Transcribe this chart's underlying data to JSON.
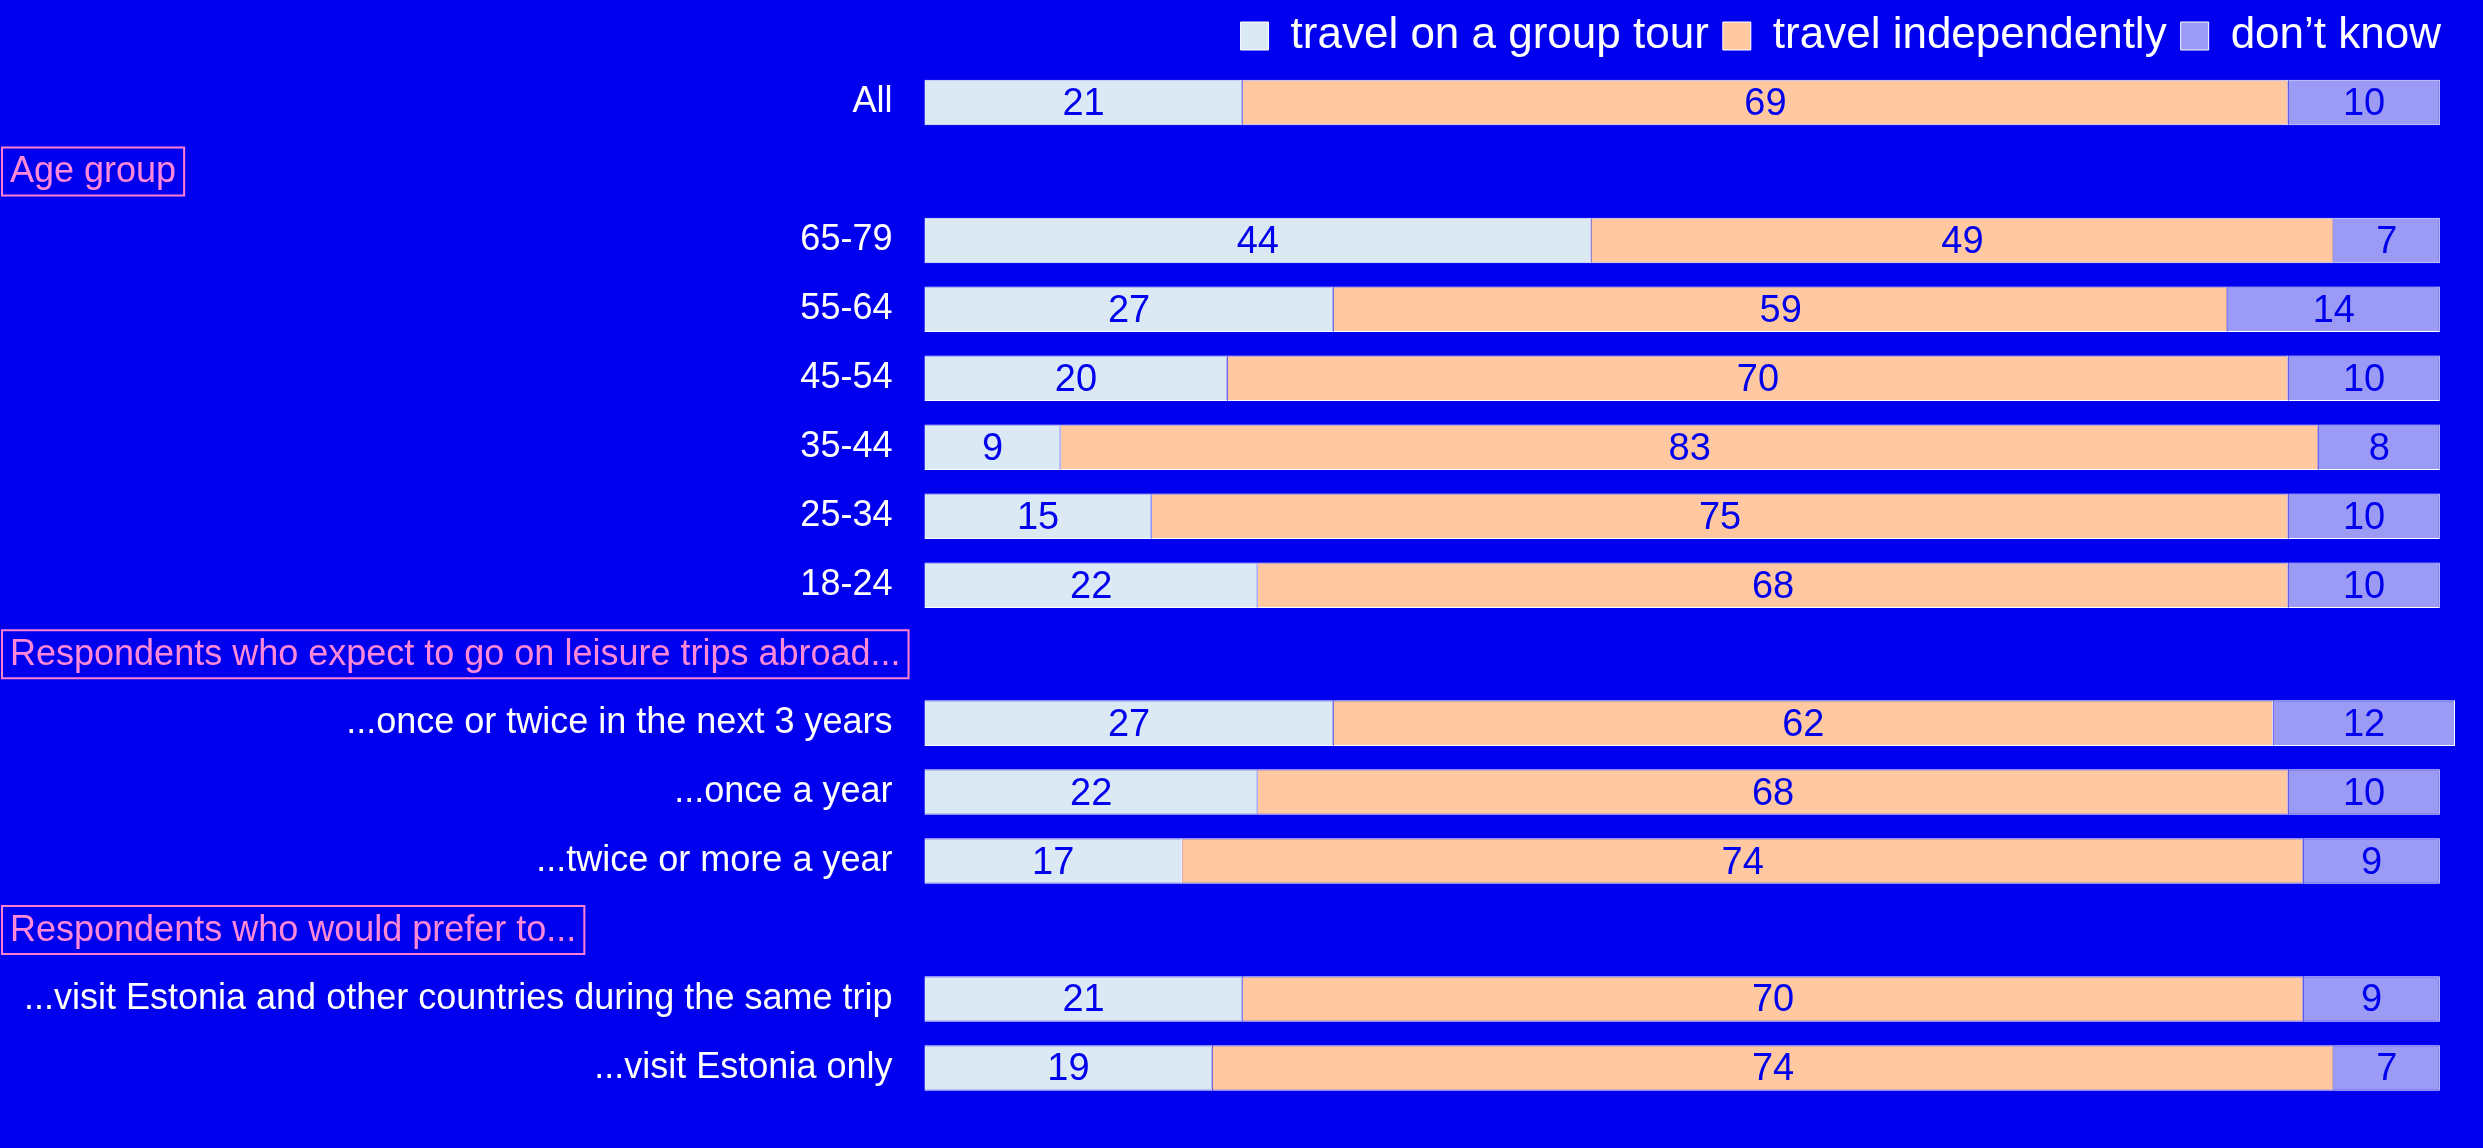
{
  "chart_data": {
    "type": "bar",
    "orientation": "horizontal",
    "stacked": true,
    "data_labels": true,
    "legend": "top right",
    "tick_labels": "y",
    "xlim": [
      0,
      101
    ],
    "categories": [
      "All",
      null,
      "65-79",
      "55-64",
      "45-54",
      "35-44",
      "25-34",
      "18-24",
      null,
      "...once or twice in the next 3 years",
      "...once a year",
      "...twice or more a year",
      null,
      "...visit Estonia and other countries during the same trip",
      "...visit Estonia only"
    ],
    "annotations": [
      "Age group",
      "Respondents who expect to go on leisure trips abroad...",
      "Respondents who would prefer to..."
    ],
    "series": [
      {
        "name": "travel on a group tour",
        "color": "#dbe9f5",
        "values": [
          21,
          null,
          44,
          27,
          20,
          9,
          15,
          22,
          null,
          27,
          22,
          17,
          null,
          21,
          19
        ]
      },
      {
        "name": "travel independently",
        "color": "#ffc8a0",
        "values": [
          69,
          null,
          49,
          59,
          70,
          83,
          75,
          68,
          null,
          62,
          68,
          74,
          null,
          70,
          74
        ]
      },
      {
        "name": "don’t know",
        "color": "#9b9bf5",
        "values": [
          10,
          null,
          7,
          14,
          10,
          8,
          10,
          10,
          null,
          12,
          10,
          9,
          null,
          9,
          7
        ]
      }
    ]
  }
}
